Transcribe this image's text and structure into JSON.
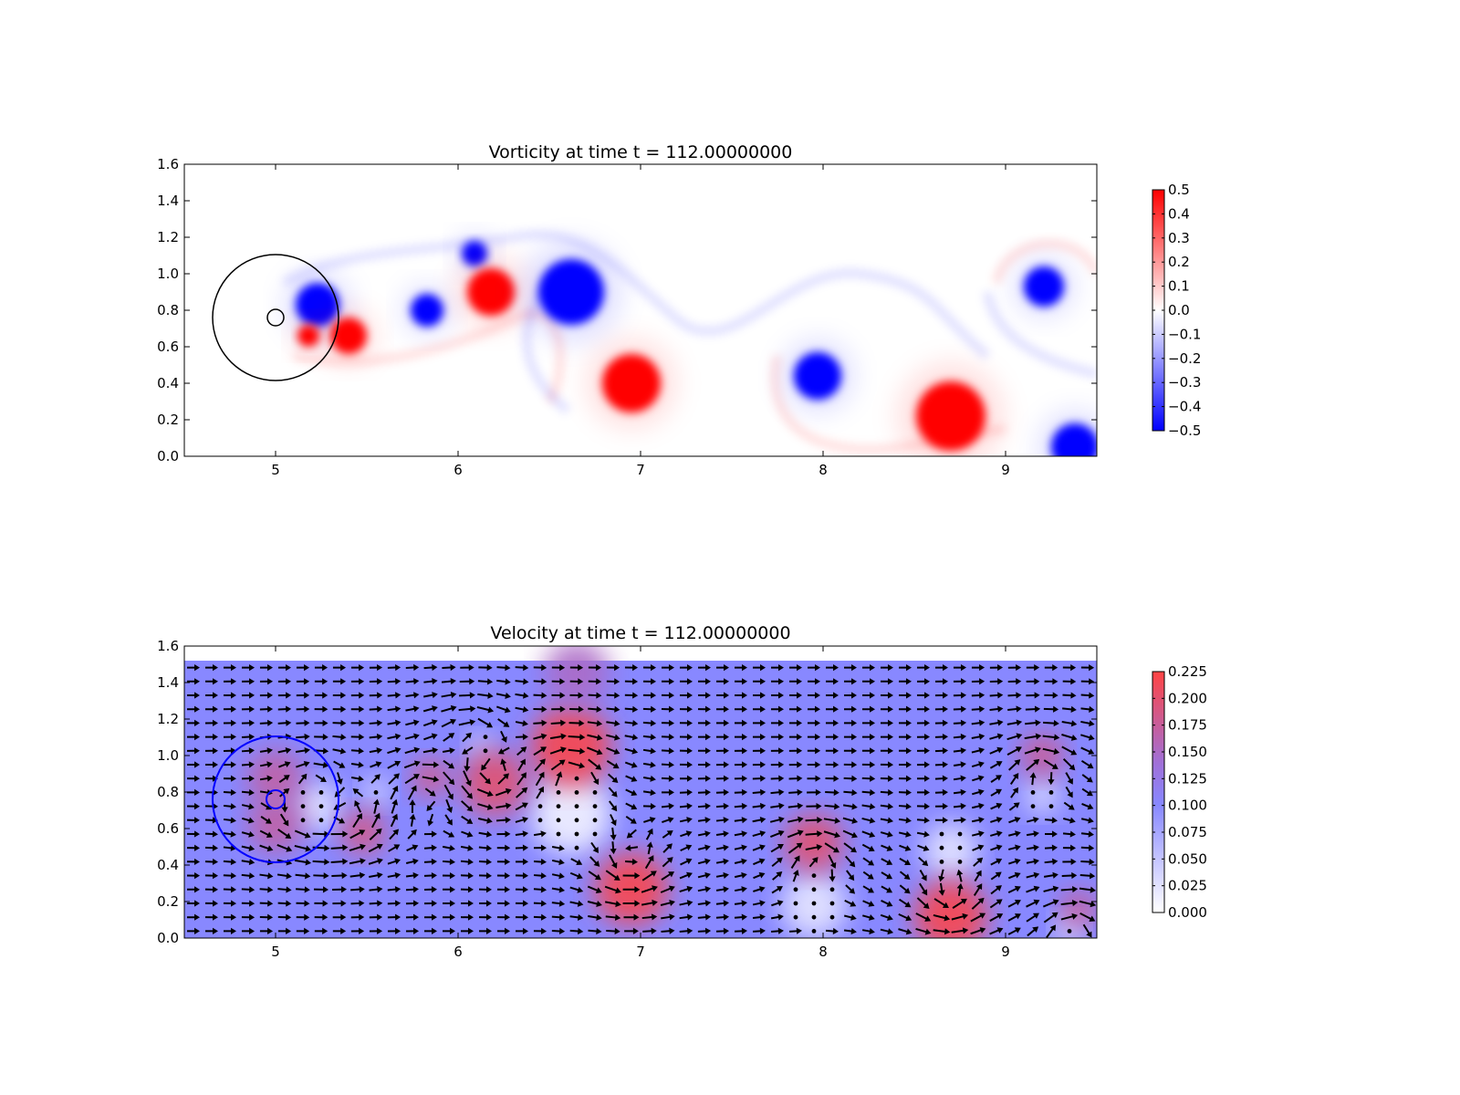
{
  "chart_data": [
    {
      "type": "heatmap",
      "title": "Vorticity at time t =   112.00000000",
      "xlabel": "",
      "ylabel": "",
      "xlim": [
        4.5,
        9.5
      ],
      "ylim": [
        0.0,
        1.6
      ],
      "xticks": [
        5,
        6,
        7,
        8,
        9
      ],
      "yticks": [
        "0.0",
        "0.2",
        "0.4",
        "0.6",
        "0.8",
        "1.0",
        "1.2",
        "1.4",
        "1.6"
      ],
      "colorbar": {
        "colormap": "bwr",
        "low_color": "#0000ff",
        "mid_color": "#ffffff",
        "high_color": "#ff0000",
        "range": [
          -0.5,
          0.5
        ],
        "ticks": [
          "0.5",
          "0.4",
          "0.3",
          "0.2",
          "0.1",
          "0.0",
          "−0.1",
          "−0.2",
          "−0.3",
          "−0.4",
          "−0.5"
        ]
      },
      "vortices": [
        {
          "x": 5.23,
          "y": 0.83,
          "r": 0.12,
          "sign": -1
        },
        {
          "x": 5.4,
          "y": 0.66,
          "r": 0.1,
          "sign": 1
        },
        {
          "x": 5.18,
          "y": 0.66,
          "r": 0.06,
          "sign": 1
        },
        {
          "x": 5.83,
          "y": 0.8,
          "r": 0.09,
          "sign": -1
        },
        {
          "x": 6.09,
          "y": 1.11,
          "r": 0.07,
          "sign": -1
        },
        {
          "x": 6.18,
          "y": 0.9,
          "r": 0.13,
          "sign": 1
        },
        {
          "x": 6.62,
          "y": 0.9,
          "r": 0.18,
          "sign": -1
        },
        {
          "x": 6.95,
          "y": 0.4,
          "r": 0.16,
          "sign": 1
        },
        {
          "x": 7.97,
          "y": 0.44,
          "r": 0.13,
          "sign": -1
        },
        {
          "x": 8.7,
          "y": 0.22,
          "r": 0.19,
          "sign": 1
        },
        {
          "x": 9.21,
          "y": 0.93,
          "r": 0.11,
          "sign": -1
        },
        {
          "x": 9.38,
          "y": 0.05,
          "r": 0.13,
          "sign": -1
        }
      ],
      "circles": [
        {
          "x": 5.0,
          "y": 0.76,
          "r": 0.345,
          "color": "#000000"
        },
        {
          "x": 5.0,
          "y": 0.76,
          "r": 0.045,
          "color": "#000000"
        }
      ]
    },
    {
      "type": "heatmap",
      "title": "Velocity at time t =   112.00000000",
      "xlabel": "",
      "ylabel": "",
      "xlim": [
        4.5,
        9.5
      ],
      "ylim": [
        0.0,
        1.6
      ],
      "field_extent": [
        4.5,
        9.5,
        0.0,
        1.52
      ],
      "xticks": [
        5,
        6,
        7,
        8,
        9
      ],
      "yticks": [
        "0.0",
        "0.2",
        "0.4",
        "0.6",
        "0.8",
        "1.0",
        "1.2",
        "1.4",
        "1.6"
      ],
      "background_speed": 0.1,
      "colorbar": {
        "colormap": "white-blue-red",
        "low_color": "#ffffff",
        "mid_color": "#8888ff",
        "high_color": "#ff4444",
        "range": [
          0.0,
          0.225
        ],
        "ticks": [
          "0.225",
          "0.200",
          "0.175",
          "0.150",
          "0.125",
          "0.100",
          "0.075",
          "0.050",
          "0.025",
          "0.000"
        ]
      },
      "quiver": {
        "color": "#000000",
        "arrow_direction": "right"
      },
      "fast_regions": [
        {
          "x": 6.62,
          "y": 1.05,
          "r": 0.22,
          "speed": 0.22
        },
        {
          "x": 6.95,
          "y": 0.27,
          "r": 0.2,
          "speed": 0.22
        },
        {
          "x": 8.7,
          "y": 0.12,
          "r": 0.2,
          "speed": 0.22
        },
        {
          "x": 7.95,
          "y": 0.52,
          "r": 0.16,
          "speed": 0.2
        },
        {
          "x": 6.2,
          "y": 0.85,
          "r": 0.18,
          "speed": 0.2
        },
        {
          "x": 5.85,
          "y": 0.88,
          "r": 0.1,
          "speed": 0.19
        },
        {
          "x": 5.48,
          "y": 0.58,
          "r": 0.12,
          "speed": 0.19
        },
        {
          "x": 5.0,
          "y": 0.88,
          "r": 0.15,
          "speed": 0.17
        },
        {
          "x": 5.0,
          "y": 0.62,
          "r": 0.15,
          "speed": 0.17
        },
        {
          "x": 9.2,
          "y": 1.0,
          "r": 0.12,
          "speed": 0.18
        },
        {
          "x": 9.4,
          "y": 0.16,
          "r": 0.1,
          "speed": 0.18
        },
        {
          "x": 6.65,
          "y": 1.45,
          "r": 0.18,
          "speed": 0.15
        }
      ],
      "slow_regions": [
        {
          "x": 5.23,
          "y": 0.72,
          "r": 0.13,
          "speed": 0.02
        },
        {
          "x": 5.55,
          "y": 0.8,
          "r": 0.08,
          "speed": 0.03
        },
        {
          "x": 6.12,
          "y": 1.05,
          "r": 0.07,
          "speed": 0.03
        },
        {
          "x": 6.62,
          "y": 0.68,
          "r": 0.22,
          "speed": 0.01
        },
        {
          "x": 7.95,
          "y": 0.18,
          "r": 0.18,
          "speed": 0.02
        },
        {
          "x": 8.7,
          "y": 0.48,
          "r": 0.15,
          "speed": 0.02
        },
        {
          "x": 9.2,
          "y": 0.78,
          "r": 0.1,
          "speed": 0.03
        },
        {
          "x": 9.35,
          "y": 0.04,
          "r": 0.08,
          "speed": 0.02
        }
      ],
      "circles": [
        {
          "x": 5.0,
          "y": 0.76,
          "r": 0.345,
          "color": "#0000ff"
        },
        {
          "x": 5.0,
          "y": 0.76,
          "r": 0.05,
          "color": "#0000ff"
        }
      ]
    }
  ]
}
